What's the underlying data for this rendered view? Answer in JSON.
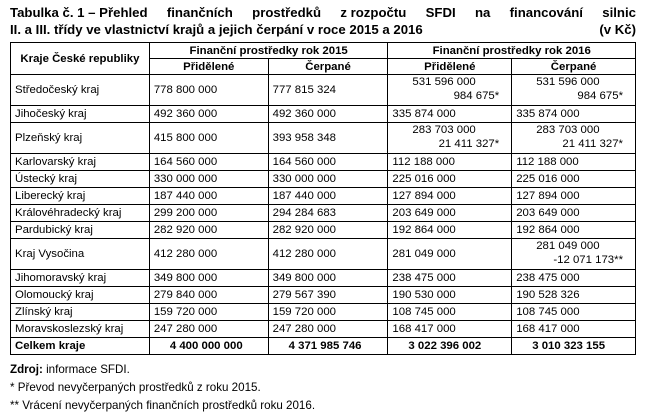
{
  "title": {
    "line1": [
      "Tabulka č. 1 – Přehled",
      "finančních",
      "prostředků",
      "z rozpočtu",
      "SFDI",
      "na",
      "financování",
      "silnic"
    ],
    "line2_text": "II. a III. třídy ve vlastnictví krajů a jejich čerpání v roce 2015 a 2016",
    "unit": "(v Kč)"
  },
  "header": {
    "region": "Kraje České republiky",
    "group2015": "Finanční prostředky rok 2015",
    "group2016": "Finanční prostředky rok 2016",
    "allocated": "Přidělené",
    "spent": "Čerpané"
  },
  "rows": [
    {
      "region": "Středočeský kraj",
      "a2015": "778 800 000",
      "s2015": "777 815 324",
      "a2016": "531 596 000",
      "a2016b": "984 675*",
      "s2016": "531 596 000",
      "s2016b": "984 675*"
    },
    {
      "region": "Jihočeský kraj",
      "a2015": "492 360 000",
      "s2015": "492 360 000",
      "a2016": "335 874 000",
      "s2016": "335 874 000"
    },
    {
      "region": "Plzeňský kraj",
      "a2015": "415 800 000",
      "s2015": "393 958 348",
      "a2016": "283 703 000",
      "a2016b": "21 411 327*",
      "s2016": "283 703 000",
      "s2016b": "21 411 327*"
    },
    {
      "region": "Karlovarský kraj",
      "a2015": "164 560 000",
      "s2015": "164 560 000",
      "a2016": "112 188 000",
      "s2016": "112 188 000"
    },
    {
      "region": "Ústecký kraj",
      "a2015": "330 000 000",
      "s2015": "330 000 000",
      "a2016": "225 016 000",
      "s2016": "225 016 000"
    },
    {
      "region": "Liberecký kraj",
      "a2015": "187 440 000",
      "s2015": "187 440 000",
      "a2016": "127 894 000",
      "s2016": "127 894 000"
    },
    {
      "region": "Královéhradecký kraj",
      "a2015": "299 200 000",
      "s2015": "294 284 683",
      "a2016": "203 649 000",
      "s2016": "203 649 000"
    },
    {
      "region": "Pardubický kraj",
      "a2015": "282 920 000",
      "s2015": "282 920 000",
      "a2016": "192 864 000",
      "s2016": "192 864 000"
    },
    {
      "region": "Kraj Vysočina",
      "a2015": "412 280 000",
      "s2015": "412 280 000",
      "a2016": "281 049 000",
      "s2016": "281 049 000",
      "s2016b": "-12 071 173**"
    },
    {
      "region": "Jihomoravský kraj",
      "a2015": "349 800 000",
      "s2015": "349 800 000",
      "a2016": "238 475 000",
      "s2016": "238 475 000"
    },
    {
      "region": "Olomoucký kraj",
      "a2015": "279 840 000",
      "s2015": "279 567 390",
      "a2016": "190 530 000",
      "s2016": "190 528 326"
    },
    {
      "region": "Zlínský kraj",
      "a2015": "159 720 000",
      "s2015": "159 720 000",
      "a2016": "108 745 000",
      "s2016": "108 745 000"
    },
    {
      "region": "Moravskoslezský kraj",
      "a2015": "247 280 000",
      "s2015": "247 280 000",
      "a2016": "168 417 000",
      "s2016": "168 417 000"
    }
  ],
  "total": {
    "region": "Celkem kraje",
    "a2015": "4 400 000 000",
    "s2015": "4 371 985 746",
    "a2016": "3 022 396 002",
    "s2016": "3 010 323 155"
  },
  "notes": {
    "source_label": "Zdroj:",
    "source_text": "informace SFDI.",
    "n1": "*   Převod nevyčerpaných prostředků z roku 2015.",
    "n2": "** Vrácení nevyčerpaných finančních prostředků roku 2016."
  }
}
